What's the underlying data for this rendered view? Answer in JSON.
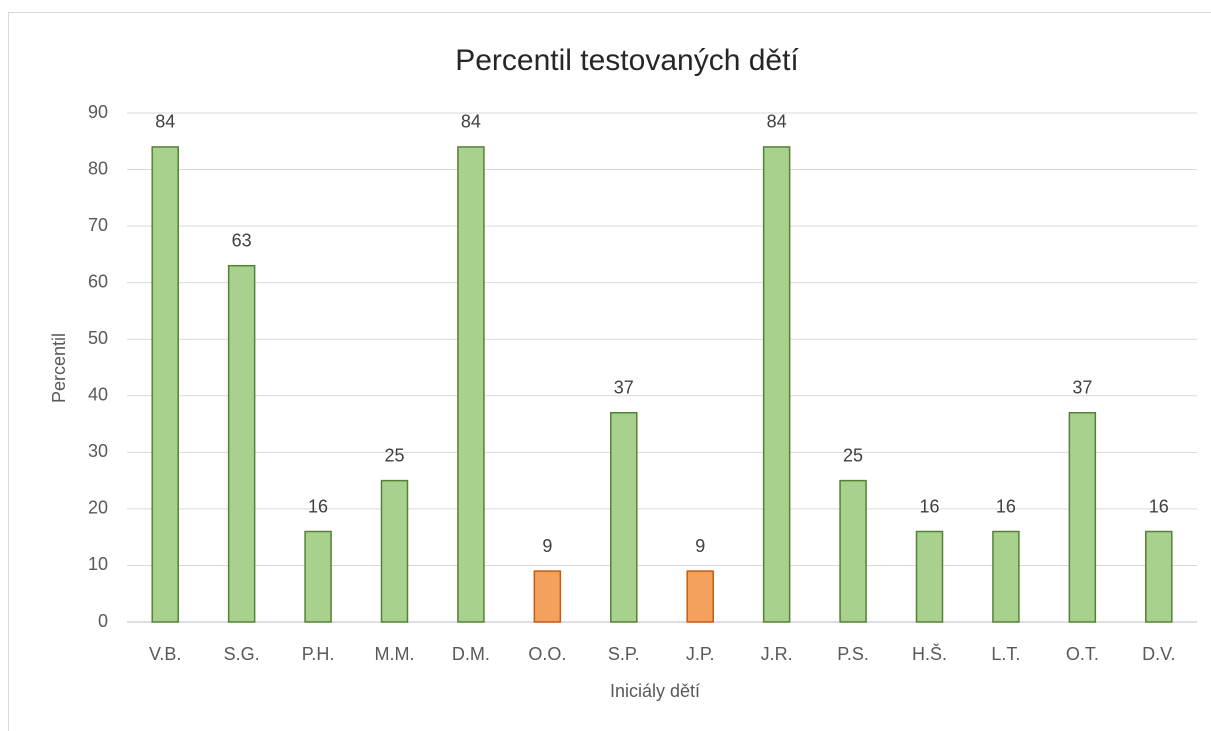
{
  "chart_data": {
    "type": "bar",
    "title": "Percentil testovaných dětí",
    "x_label": "Iniciály dětí",
    "y_label": "Percentil",
    "categories": [
      "V.B.",
      "S.G.",
      "P.H.",
      "M.M.",
      "D.M.",
      "O.O.",
      "S.P.",
      "J.P.",
      "J.R.",
      "P.S.",
      "H.Š.",
      "L.T.",
      "O.T.",
      "D.V."
    ],
    "values": [
      84,
      63,
      16,
      25,
      84,
      9,
      37,
      9,
      84,
      25,
      16,
      16,
      37,
      16
    ],
    "colors": [
      "#a9d18e",
      "#a9d18e",
      "#a9d18e",
      "#a9d18e",
      "#a9d18e",
      "#f4a15d",
      "#a9d18e",
      "#f4a15d",
      "#a9d18e",
      "#a9d18e",
      "#a9d18e",
      "#a9d18e",
      "#a9d18e",
      "#a9d18e"
    ],
    "edgecolors": [
      "#548235",
      "#548235",
      "#548235",
      "#548235",
      "#548235",
      "#c55a11",
      "#548235",
      "#c55a11",
      "#548235",
      "#548235",
      "#548235",
      "#548235",
      "#548235",
      "#548235"
    ],
    "ylim": [
      0,
      90
    ],
    "yticks": [
      0,
      10,
      20,
      30,
      40,
      50,
      60,
      70,
      80,
      90
    ],
    "grid": true,
    "data_labels": true
  }
}
